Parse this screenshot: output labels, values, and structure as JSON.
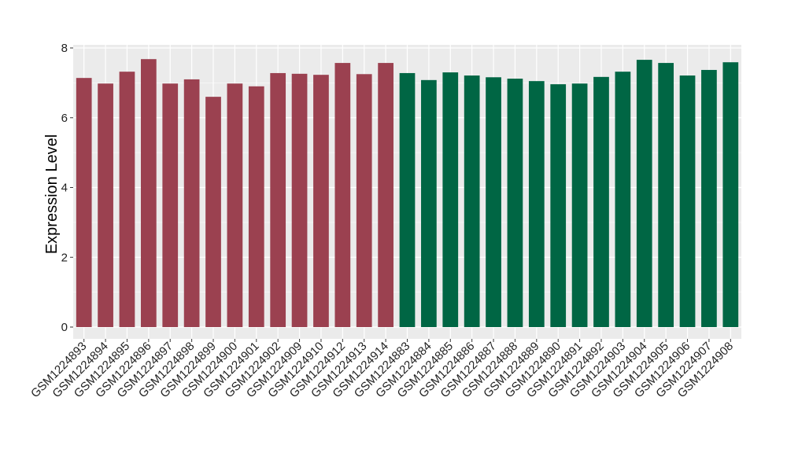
{
  "chart_data": {
    "type": "bar",
    "title": "",
    "xlabel": "",
    "ylabel": "Expression Level",
    "ylim": [
      0,
      8.1
    ],
    "yticks": [
      0,
      2,
      4,
      6,
      8
    ],
    "grid": true,
    "legend": "none",
    "colors": {
      "group_a": "#9b4150",
      "group_b": "#006644",
      "panel": "#ebebeb",
      "gridline": "#ffffff"
    },
    "categories": [
      "GSM1224893",
      "GSM1224894",
      "GSM1224895",
      "GSM1224896",
      "GSM1224897",
      "GSM1224898",
      "GSM1224899",
      "GSM1224900",
      "GSM1224901",
      "GSM1224902",
      "GSM1224909",
      "GSM1224910",
      "GSM1224912",
      "GSM1224913",
      "GSM1224914",
      "GSM1224883",
      "GSM1224884",
      "GSM1224885",
      "GSM1224886",
      "GSM1224887",
      "GSM1224888",
      "GSM1224889",
      "GSM1224890",
      "GSM1224891",
      "GSM1224892",
      "GSM1224903",
      "GSM1224904",
      "GSM1224905",
      "GSM1224906",
      "GSM1224907",
      "GSM1224908"
    ],
    "values": [
      7.14,
      6.98,
      7.32,
      7.68,
      6.98,
      7.1,
      6.6,
      6.98,
      6.9,
      7.28,
      7.26,
      7.23,
      7.57,
      7.25,
      7.57,
      7.28,
      7.08,
      7.3,
      7.21,
      7.16,
      7.12,
      7.05,
      6.96,
      6.98,
      7.17,
      7.32,
      7.66,
      7.57,
      7.21,
      7.37,
      7.59
    ],
    "groups": [
      "a",
      "a",
      "a",
      "a",
      "a",
      "a",
      "a",
      "a",
      "a",
      "a",
      "a",
      "a",
      "a",
      "a",
      "a",
      "b",
      "b",
      "b",
      "b",
      "b",
      "b",
      "b",
      "b",
      "b",
      "b",
      "b",
      "b",
      "b",
      "b",
      "b",
      "b"
    ]
  }
}
